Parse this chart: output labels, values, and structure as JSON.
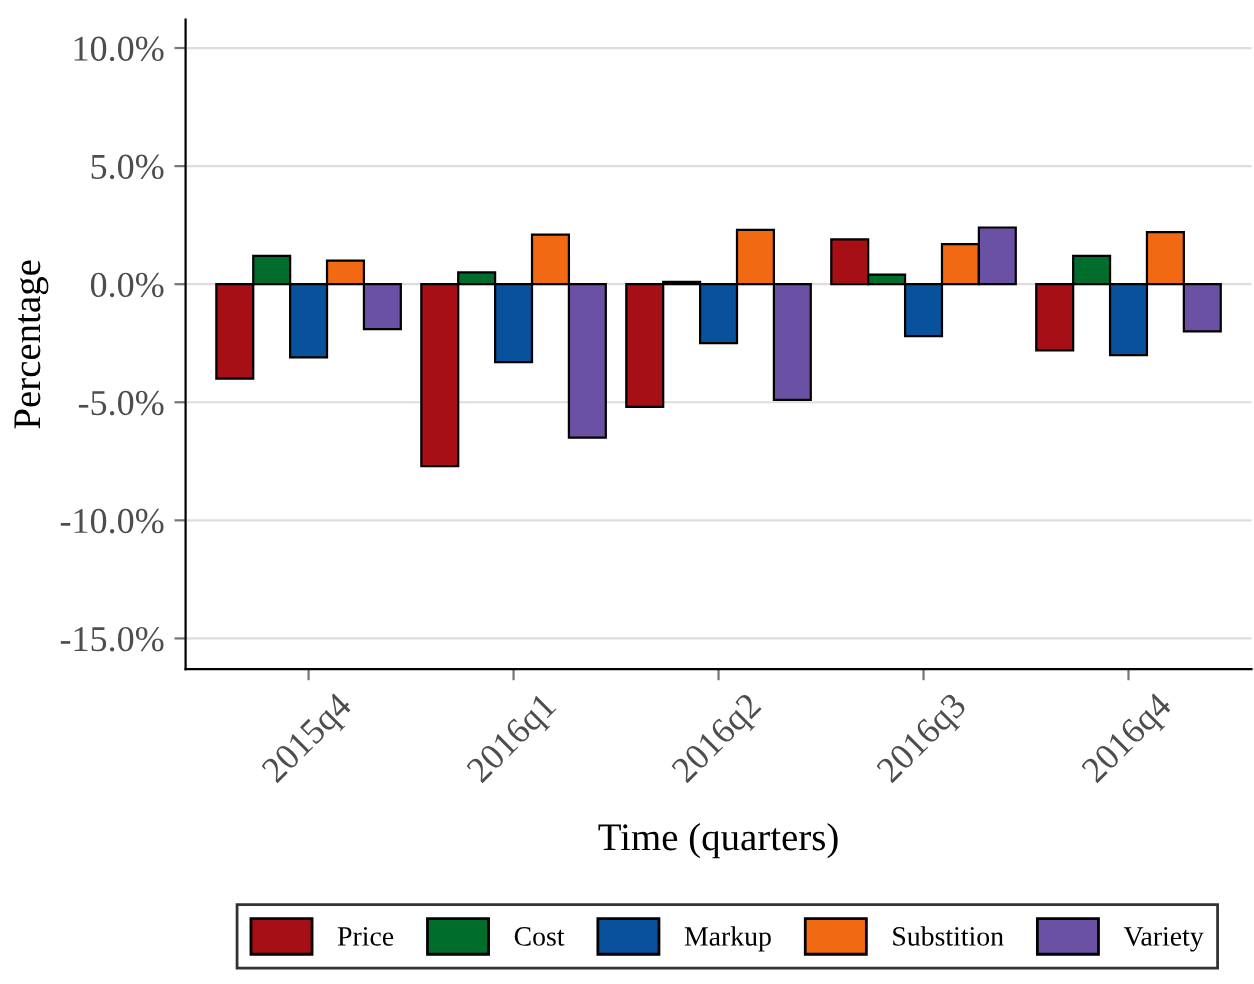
{
  "chart_data": {
    "type": "bar",
    "xlabel": "Time (quarters)",
    "ylabel": "Percentage",
    "categories": [
      "2015q4",
      "2016q1",
      "2016q2",
      "2016q3",
      "2016q4"
    ],
    "series": [
      {
        "name": "Price",
        "color": "#a50f15",
        "values": [
          -4.0,
          -7.7,
          -5.2,
          1.9,
          -2.8
        ]
      },
      {
        "name": "Cost",
        "color": "#006d2c",
        "values": [
          1.2,
          0.5,
          0.1,
          0.4,
          1.2
        ]
      },
      {
        "name": "Markup",
        "color": "#08519c",
        "values": [
          -3.1,
          -3.3,
          -2.5,
          -2.2,
          -3.0
        ]
      },
      {
        "name": "Substition",
        "color": "#f16913",
        "values": [
          1.0,
          2.1,
          2.3,
          1.7,
          2.2
        ]
      },
      {
        "name": "Variety",
        "color": "#6a51a3",
        "values": [
          -1.9,
          -6.5,
          -4.9,
          2.4,
          -2.0
        ]
      }
    ],
    "ylim": [
      -16.3,
      11.2
    ],
    "yticks": [
      {
        "value": -15,
        "label": "-15.0%"
      },
      {
        "value": -10,
        "label": "-10.0%"
      },
      {
        "value": -5,
        "label": "-5.0%"
      },
      {
        "value": 0,
        "label": "0.0%"
      },
      {
        "value": 5,
        "label": "5.0%"
      },
      {
        "value": 10,
        "label": "10.0%"
      }
    ],
    "grid": "y",
    "legend": "bottom"
  }
}
